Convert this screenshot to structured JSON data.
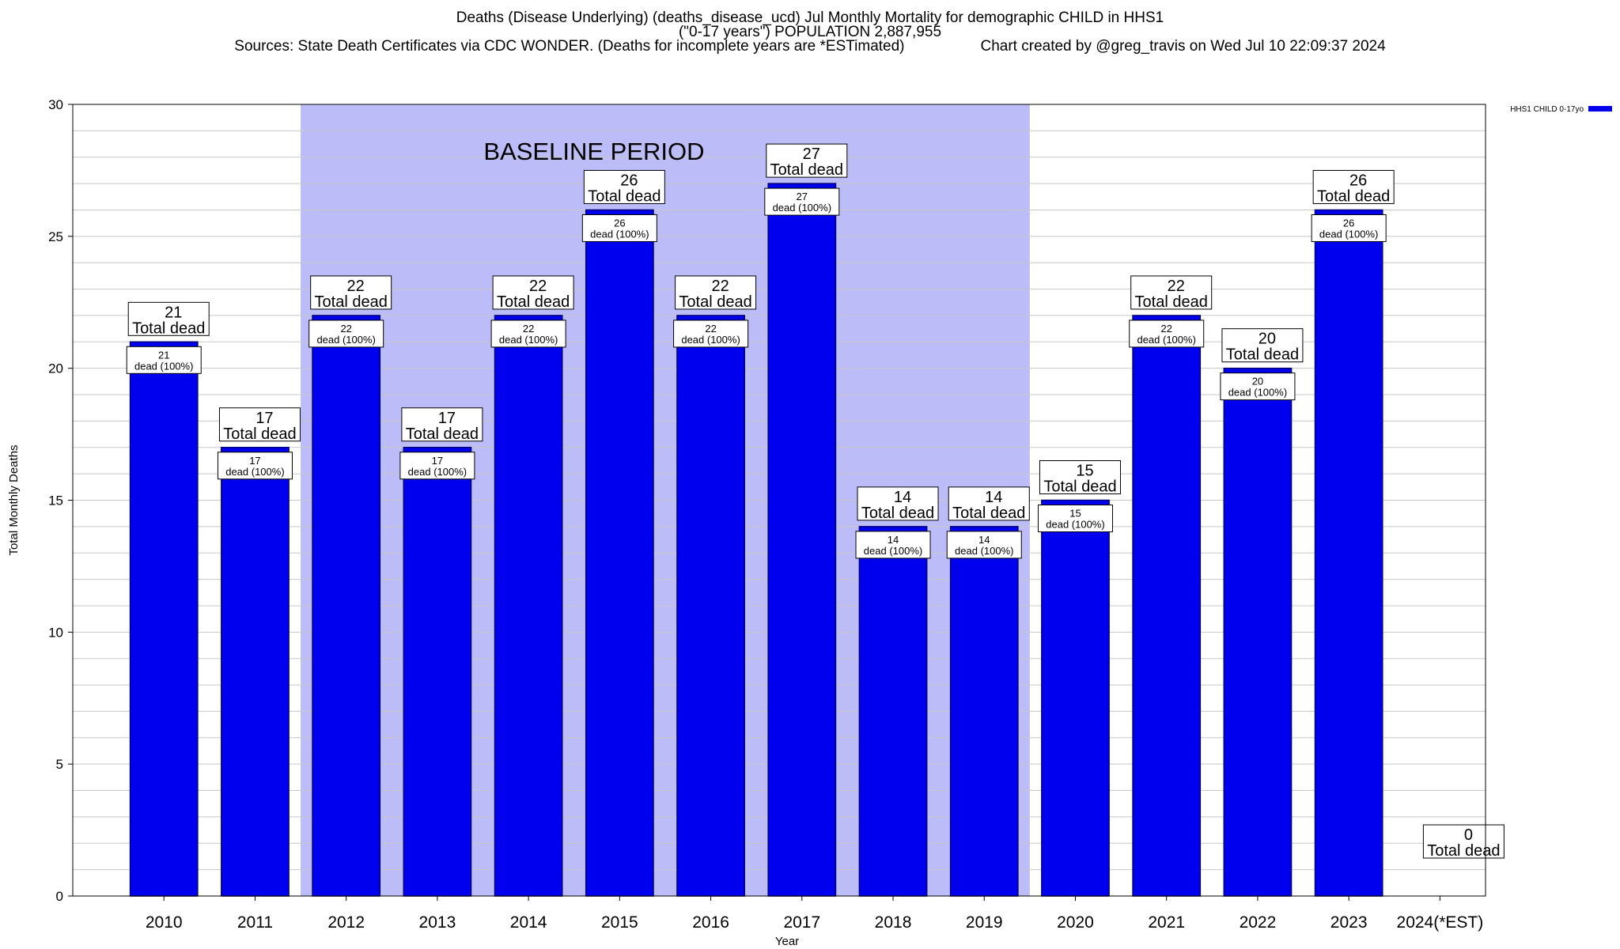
{
  "header": {
    "title_line1": "Deaths (Disease Underlying) (deaths_disease_ucd) Jul Monthly Mortality for demographic CHILD in HHS1",
    "title_line2": "(\"0-17 years\") POPULATION 2,887,955",
    "sources": "Sources: State Death Certificates via CDC WONDER. (Deaths for incomplete years are *ESTimated)",
    "credit": "Chart created by @greg_travis on Wed Jul 10 22:09:37 2024"
  },
  "colors": {
    "bar": "#0000ee",
    "baseline_shade": "#bcbcf8",
    "grid": "#c8c8c8",
    "axis": "#000000"
  },
  "chart_data": {
    "type": "bar",
    "title": "Deaths (Disease Underlying) (deaths_disease_ucd) Jul Monthly Mortality for demographic CHILD in HHS1",
    "xlabel": "Year",
    "ylabel": "Total Monthly Deaths",
    "ylim": [
      0,
      30
    ],
    "yticks": [
      0,
      5,
      10,
      15,
      20,
      25,
      30
    ],
    "grid": true,
    "legend_position": "top-right",
    "categories": [
      "2010",
      "2011",
      "2012",
      "2013",
      "2014",
      "2015",
      "2016",
      "2017",
      "2018",
      "2019",
      "2020",
      "2021",
      "2022",
      "2023",
      "2024(*EST)"
    ],
    "series": [
      {
        "name": "HHS1 CHILD 0-17yo",
        "values": [
          21,
          17,
          22,
          17,
          22,
          26,
          22,
          27,
          14,
          14,
          15,
          22,
          20,
          26,
          0
        ]
      }
    ],
    "baseline_period": {
      "label": "BASELINE PERIOD",
      "start": "2012",
      "end": "2019"
    },
    "total_label_suffix": "Total dead",
    "inner_label_suffix": "dead (100%)"
  }
}
